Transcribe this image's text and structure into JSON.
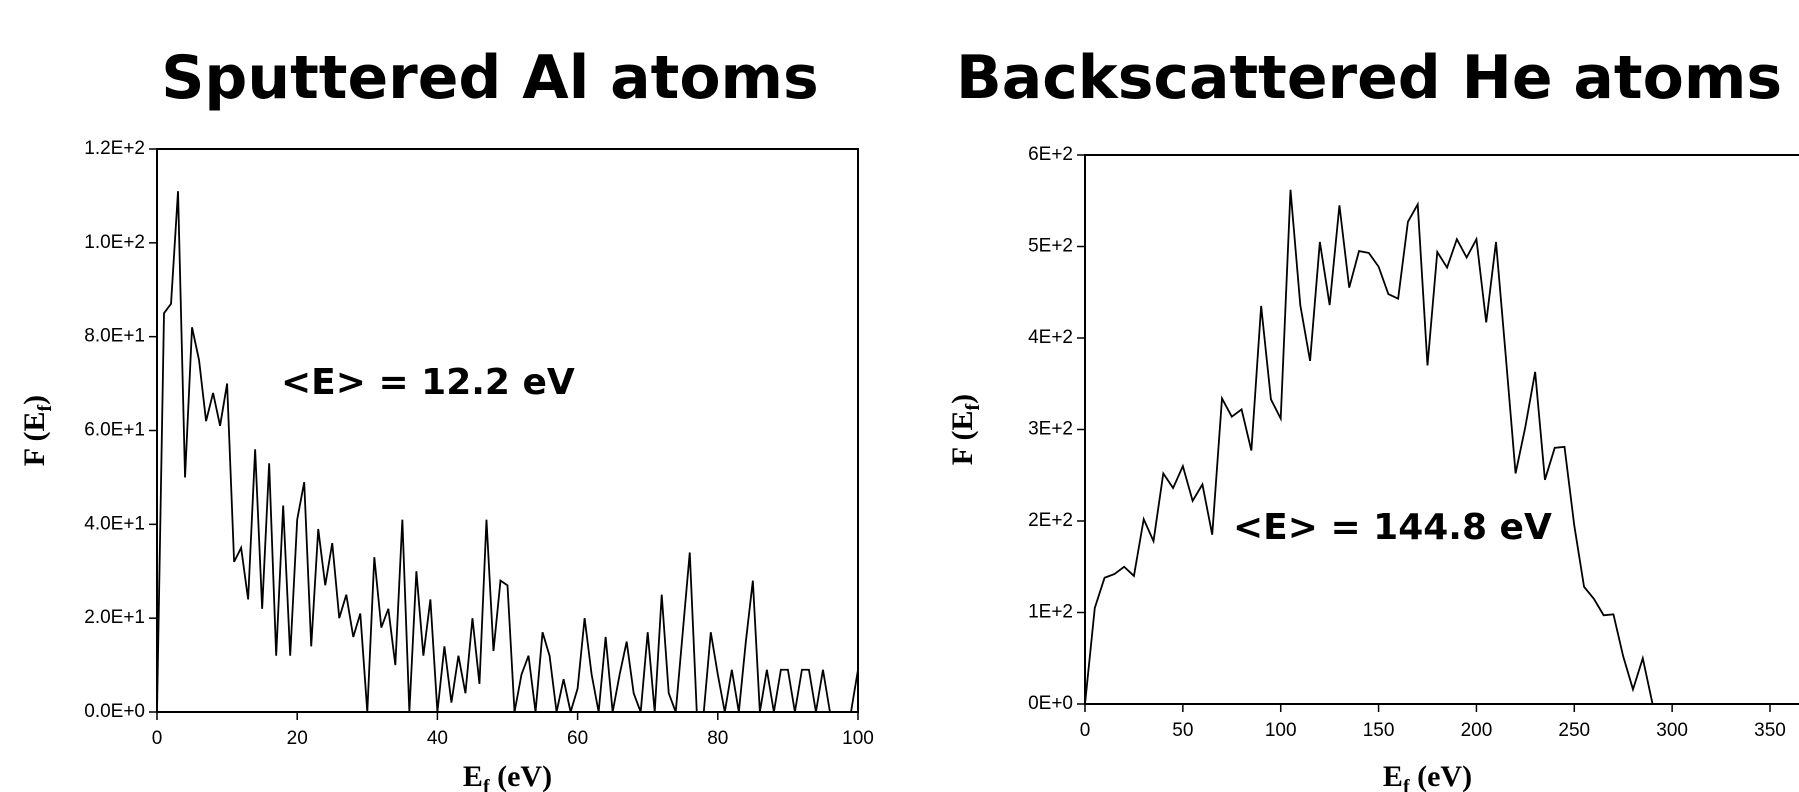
{
  "chart_data": [
    {
      "type": "line",
      "title": "Sputtered Al atoms",
      "annotation": "<E> = 12.2 eV",
      "ylabel_parts": [
        "F (E",
        "f",
        ")"
      ],
      "xlabel_parts": [
        "E",
        "f",
        " (eV)"
      ],
      "xlim": [
        0,
        100
      ],
      "ylim": [
        0,
        120
      ],
      "xticks": [
        0,
        20,
        40,
        60,
        80,
        100
      ],
      "yticks": [
        {
          "value": 0,
          "label": "0.0E+0"
        },
        {
          "value": 20,
          "label": "2.0E+1"
        },
        {
          "value": 40,
          "label": "4.0E+1"
        },
        {
          "value": 60,
          "label": "6.0E+1"
        },
        {
          "value": 80,
          "label": "8.0E+1"
        },
        {
          "value": 100,
          "label": "1.0E+2"
        },
        {
          "value": 120,
          "label": "1.2E+2"
        }
      ],
      "x": [
        0,
        1,
        2,
        3,
        4,
        5,
        6,
        7,
        8,
        9,
        10,
        11,
        12,
        13,
        14,
        15,
        16,
        17,
        18,
        19,
        20,
        21,
        22,
        23,
        24,
        25,
        26,
        27,
        28,
        29,
        30,
        31,
        32,
        33,
        34,
        35,
        36,
        37,
        38,
        39,
        40,
        41,
        42,
        43,
        44,
        45,
        46,
        47,
        48,
        49,
        50,
        51,
        52,
        53,
        54,
        55,
        56,
        57,
        58,
        59,
        60,
        61,
        62,
        63,
        64,
        65,
        66,
        67,
        68,
        69,
        70,
        71,
        72,
        73,
        74,
        75,
        76,
        77,
        78,
        79,
        80,
        81,
        82,
        83,
        84,
        85,
        86,
        87,
        88,
        89,
        90,
        91,
        92,
        93,
        94,
        95,
        96,
        97,
        98,
        99,
        100
      ],
      "series": [
        {
          "color": "#000000",
          "values": [
            0,
            85,
            87,
            111,
            50,
            82,
            75,
            62,
            68,
            61,
            70,
            32,
            35,
            24,
            56,
            22,
            53,
            12,
            44,
            12,
            41,
            49,
            14,
            39,
            27,
            36,
            20,
            25,
            16,
            21,
            0,
            33,
            18,
            22,
            10,
            41,
            0,
            30,
            12,
            24,
            0,
            14,
            2,
            12,
            4,
            20,
            6,
            41,
            13,
            28,
            27,
            0,
            8,
            12,
            0,
            17,
            12,
            0,
            7,
            0,
            5,
            20,
            8,
            0,
            16,
            0,
            8,
            15,
            4,
            0,
            17,
            0,
            25,
            4,
            0,
            17,
            34,
            0,
            0,
            17,
            8,
            0,
            9,
            0,
            15,
            28,
            0,
            9,
            0,
            9,
            9,
            0,
            9,
            9,
            0,
            9,
            0,
            0,
            0,
            0,
            9
          ]
        }
      ]
    },
    {
      "type": "line",
      "title": "Backscattered He atoms",
      "annotation": "<E> = 144.8 eV",
      "ylabel_parts": [
        "F (E",
        "f",
        ")"
      ],
      "xlabel_parts": [
        "E",
        "f",
        " (eV)"
      ],
      "xlim": [
        0,
        350
      ],
      "ylim": [
        0,
        600
      ],
      "xticks": [
        0,
        50,
        100,
        150,
        200,
        250,
        300,
        350
      ],
      "yticks": [
        {
          "value": 0,
          "label": "0E+0"
        },
        {
          "value": 100,
          "label": "1E+2"
        },
        {
          "value": 200,
          "label": "2E+2"
        },
        {
          "value": 300,
          "label": "3E+2"
        },
        {
          "value": 400,
          "label": "4E+2"
        },
        {
          "value": 500,
          "label": "5E+2"
        },
        {
          "value": 600,
          "label": "6E+2"
        }
      ],
      "x": [
        0,
        5,
        10,
        15,
        20,
        25,
        30,
        35,
        40,
        45,
        50,
        55,
        60,
        65,
        70,
        75,
        80,
        85,
        90,
        95,
        100,
        105,
        110,
        115,
        120,
        125,
        130,
        135,
        140,
        145,
        150,
        155,
        160,
        165,
        170,
        175,
        180,
        185,
        190,
        195,
        200,
        205,
        210,
        215,
        220,
        225,
        230,
        235,
        240,
        245,
        250,
        255,
        260,
        265,
        270,
        275,
        280,
        285,
        290
      ],
      "series": [
        {
          "color": "#000000",
          "values": [
            0,
            105,
            138,
            142,
            150,
            140,
            202,
            178,
            252,
            236,
            260,
            222,
            240,
            185,
            334,
            314,
            322,
            277,
            435,
            333,
            312,
            562,
            436,
            375,
            505,
            436,
            545,
            455,
            495,
            493,
            478,
            448,
            443,
            527,
            546,
            370,
            494,
            477,
            508,
            488,
            508,
            417,
            505,
            380,
            252,
            303,
            363,
            245,
            280,
            281,
            195,
            128,
            115,
            97,
            98,
            52,
            16,
            50,
            0
          ]
        }
      ]
    }
  ]
}
